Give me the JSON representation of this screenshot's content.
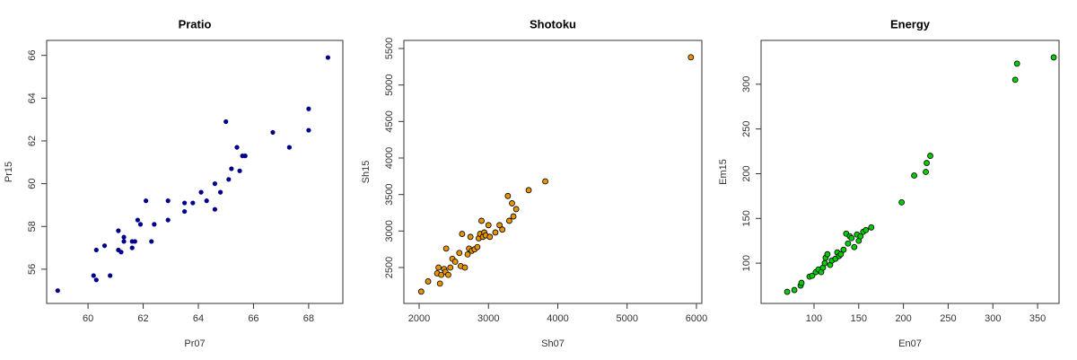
{
  "chart_data": [
    {
      "type": "scatter",
      "title": "Pratio",
      "x_label": "Pr07",
      "y_label": "Pr15",
      "color": "#00008b",
      "outline": false,
      "xlim": [
        58.5,
        69.24
      ],
      "ylim": [
        54.4,
        66.7
      ],
      "xticks": [
        60,
        62,
        64,
        66,
        68
      ],
      "yticks": [
        56,
        58,
        60,
        62,
        64,
        66
      ],
      "x": [
        58.9,
        60.2,
        60.3,
        60.3,
        60.6,
        60.8,
        61.1,
        61.1,
        61.2,
        61.3,
        61.3,
        61.6,
        61.7,
        61.6,
        61.8,
        61.9,
        62.1,
        62.4,
        62.3,
        62.9,
        62.9,
        63.5,
        63.5,
        63.8,
        64.1,
        64.3,
        64.6,
        64.6,
        64.8,
        65.0,
        65.1,
        65.2,
        65.4,
        65.5,
        65.6,
        65.7,
        66.7,
        67.3,
        68.0,
        68.0,
        68.7
      ],
      "values": [
        55.0,
        55.7,
        55.5,
        56.9,
        57.1,
        55.7,
        57.8,
        56.9,
        56.8,
        57.5,
        57.3,
        57.3,
        57.3,
        57.0,
        58.3,
        58.1,
        59.2,
        58.1,
        57.3,
        58.3,
        59.2,
        58.7,
        59.1,
        59.1,
        59.6,
        59.2,
        58.8,
        60.0,
        59.6,
        62.9,
        60.2,
        60.7,
        61.7,
        60.6,
        61.3,
        61.3,
        62.4,
        61.7,
        63.5,
        62.5,
        65.9
      ]
    },
    {
      "type": "scatter",
      "title": "Shotoku",
      "x_label": "Sh07",
      "y_label": "Sh15",
      "color": "#e69500",
      "outline": true,
      "xlim": [
        1780,
        6078
      ],
      "ylim": [
        2008,
        5611
      ],
      "xticks": [
        2000,
        3000,
        4000,
        5000,
        6000
      ],
      "yticks": [
        2500,
        3000,
        3500,
        4000,
        4500,
        5000,
        5500
      ],
      "x": [
        2030,
        2130,
        2260,
        2280,
        2300,
        2320,
        2360,
        2380,
        2390,
        2420,
        2450,
        2480,
        2520,
        2600,
        2580,
        2620,
        2660,
        2700,
        2720,
        2740,
        2760,
        2800,
        2840,
        2860,
        2880,
        2900,
        2920,
        2940,
        2960,
        3000,
        3020,
        3100,
        3160,
        3200,
        3280,
        3300,
        3340,
        3360,
        3400,
        3580,
        3820,
        5920
      ],
      "values": [
        2170,
        2310,
        2420,
        2500,
        2280,
        2400,
        2480,
        2440,
        2760,
        2400,
        2500,
        2620,
        2580,
        2520,
        2700,
        2960,
        2500,
        2680,
        2760,
        2920,
        2730,
        2750,
        2780,
        2900,
        2960,
        3140,
        2920,
        2980,
        2940,
        3080,
        2920,
        2980,
        3080,
        3020,
        3480,
        3140,
        3380,
        3200,
        3300,
        3560,
        3680,
        5380
      ]
    },
    {
      "type": "scatter",
      "title": "Energy",
      "x_label": "En07",
      "y_label": "Em15",
      "color": "#00cc00",
      "outline": true,
      "xlim": [
        40.8,
        374
      ],
      "ylim": [
        55,
        349
      ],
      "xticks": [
        100,
        150,
        200,
        250,
        300,
        350
      ],
      "yticks": [
        100,
        150,
        200,
        250,
        300
      ],
      "x": [
        70,
        78,
        85,
        86,
        95,
        98,
        102,
        105,
        108,
        110,
        112,
        113,
        115,
        118,
        120,
        124,
        126,
        128,
        130,
        133,
        136,
        138,
        140,
        142,
        145,
        148,
        150,
        152,
        155,
        158,
        164,
        198,
        212,
        225,
        226,
        230,
        325,
        327,
        368
      ],
      "values": [
        68,
        70,
        75,
        78,
        85,
        86,
        90,
        93,
        90,
        95,
        100,
        106,
        110,
        98,
        103,
        105,
        112,
        108,
        110,
        115,
        133,
        122,
        130,
        128,
        118,
        132,
        125,
        130,
        135,
        137,
        140,
        168,
        198,
        202,
        212,
        220,
        305,
        323,
        330
      ]
    }
  ]
}
